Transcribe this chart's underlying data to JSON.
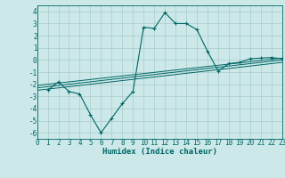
{
  "xlabel": "Humidex (Indice chaleur)",
  "ylabel": "",
  "bg_color": "#cce8e8",
  "grid_color": "#aacccc",
  "line_color": "#006666",
  "xlim": [
    0,
    23
  ],
  "ylim": [
    -6.5,
    4.5
  ],
  "yticks": [
    -6,
    -5,
    -4,
    -3,
    -2,
    -1,
    0,
    1,
    2,
    3,
    4
  ],
  "xticks": [
    0,
    1,
    2,
    3,
    4,
    5,
    6,
    7,
    8,
    9,
    10,
    11,
    12,
    13,
    14,
    15,
    16,
    17,
    18,
    19,
    20,
    21,
    22,
    23
  ],
  "curve1_x": [
    1,
    2,
    3,
    4,
    5,
    6,
    7,
    8,
    9,
    10,
    11,
    12,
    13,
    14,
    15,
    16,
    17,
    18,
    19,
    20,
    21,
    22,
    23
  ],
  "curve1_y": [
    -2.5,
    -1.8,
    -2.6,
    -2.8,
    -4.5,
    -6.0,
    -4.8,
    -3.6,
    -2.6,
    2.7,
    2.6,
    3.9,
    3.0,
    3.0,
    2.5,
    0.7,
    -0.9,
    -0.3,
    -0.2,
    0.1,
    0.15,
    0.2,
    0.1
  ],
  "line2_x": [
    0,
    23
  ],
  "line2_y": [
    -2.5,
    -0.2
  ],
  "line3_x": [
    0,
    23
  ],
  "line3_y": [
    -2.3,
    0.0
  ],
  "line4_x": [
    0,
    23
  ],
  "line4_y": [
    -2.1,
    0.15
  ]
}
